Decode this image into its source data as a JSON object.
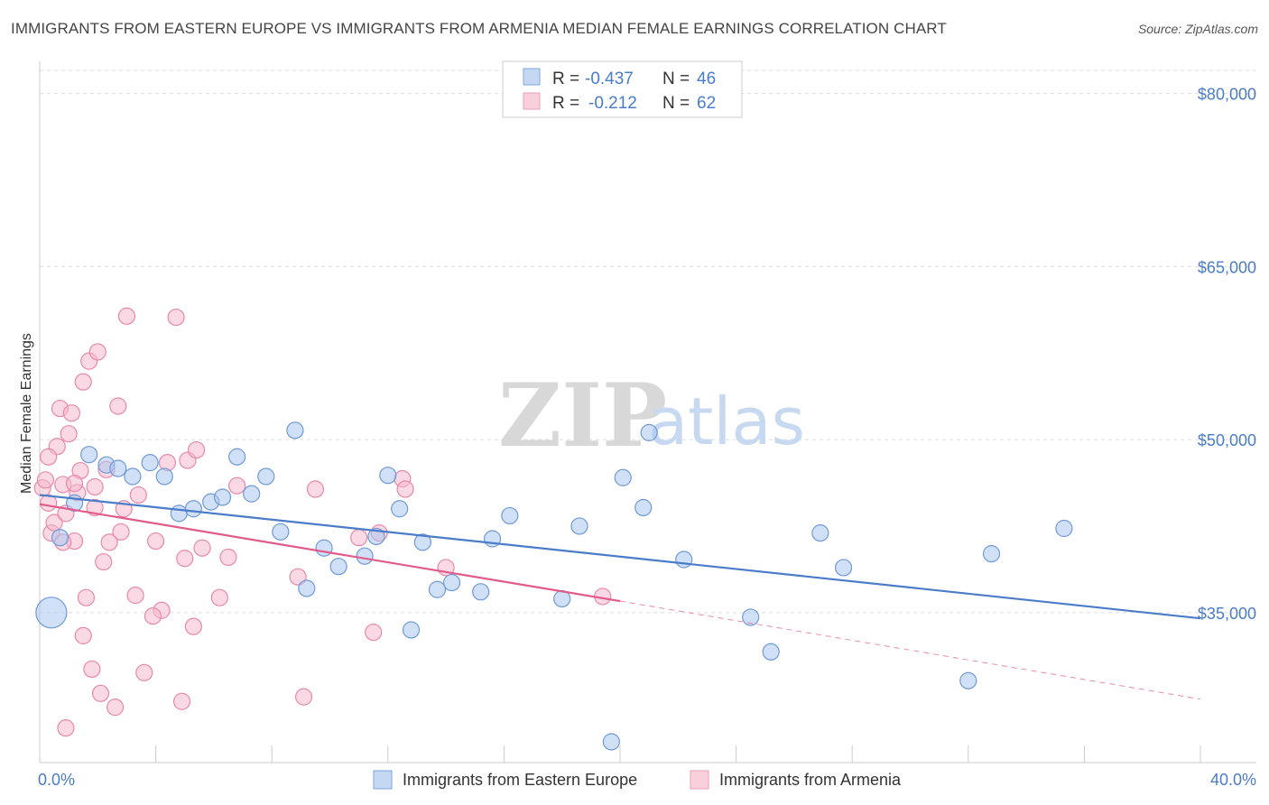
{
  "title": "IMMIGRANTS FROM EASTERN EUROPE VS IMMIGRANTS FROM ARMENIA MEDIAN FEMALE EARNINGS CORRELATION CHART",
  "source": "Source: ZipAtlas.com",
  "watermark": {
    "zip": "ZIP",
    "atlas": "atlas"
  },
  "colors": {
    "blue": "#4a7cc9",
    "blue_fill": "#a9c6ee",
    "pink": "#e05a8a",
    "pink_fill": "#f6b9cd",
    "grid": "#dddddd"
  },
  "chart_data": {
    "type": "scatter",
    "ylabel": "Median Female Earnings",
    "xlim": [
      0,
      40
    ],
    "ylim": [
      22000,
      82000
    ],
    "x_tick_labels": [
      "0.0%",
      "40.0%"
    ],
    "y_ticks": [
      {
        "value": 35000,
        "label": "$35,000"
      },
      {
        "value": 50000,
        "label": "$50,000"
      },
      {
        "value": 65000,
        "label": "$65,000"
      },
      {
        "value": 80000,
        "label": "$80,000"
      }
    ],
    "legend": {
      "rows": [
        {
          "r_label": "R = ",
          "r_value": "-0.437",
          "n_label": "N = ",
          "n_value": "46"
        },
        {
          "r_label": "R = ",
          "r_value": "-0.212",
          "n_label": "N = ",
          "n_value": "62"
        }
      ]
    },
    "series": [
      {
        "name": "Immigrants from Eastern Europe",
        "trend": {
          "x": [
            0,
            40
          ],
          "y": [
            45200,
            34500
          ]
        },
        "points": [
          [
            0.4,
            35000
          ],
          [
            0.7,
            41500
          ],
          [
            1.2,
            44500
          ],
          [
            1.7,
            48700
          ],
          [
            2.3,
            47800
          ],
          [
            2.7,
            47500
          ],
          [
            3.2,
            46800
          ],
          [
            3.8,
            48000
          ],
          [
            4.3,
            46800
          ],
          [
            4.8,
            43600
          ],
          [
            5.3,
            44000
          ],
          [
            5.9,
            44600
          ],
          [
            6.3,
            45000
          ],
          [
            6.8,
            48500
          ],
          [
            7.3,
            45300
          ],
          [
            7.8,
            46800
          ],
          [
            8.3,
            42000
          ],
          [
            8.8,
            50800
          ],
          [
            9.2,
            37100
          ],
          [
            9.8,
            40600
          ],
          [
            10.3,
            39000
          ],
          [
            11.2,
            39900
          ],
          [
            11.6,
            41600
          ],
          [
            12.0,
            46900
          ],
          [
            12.4,
            44000
          ],
          [
            12.8,
            33500
          ],
          [
            13.2,
            41100
          ],
          [
            13.7,
            37000
          ],
          [
            14.2,
            37600
          ],
          [
            15.2,
            36800
          ],
          [
            15.6,
            41400
          ],
          [
            16.2,
            43400
          ],
          [
            18.0,
            36200
          ],
          [
            18.6,
            42500
          ],
          [
            20.1,
            46700
          ],
          [
            20.8,
            44100
          ],
          [
            21.0,
            50600
          ],
          [
            22.2,
            39600
          ],
          [
            24.5,
            34600
          ],
          [
            25.2,
            31600
          ],
          [
            26.9,
            41900
          ],
          [
            27.7,
            38900
          ],
          [
            32.0,
            29100
          ],
          [
            32.8,
            40100
          ],
          [
            35.3,
            42300
          ],
          [
            19.7,
            23800
          ]
        ]
      },
      {
        "name": "Immigrants from Armenia",
        "trend": {
          "x": [
            0,
            20
          ],
          "y": [
            44400,
            36000
          ]
        },
        "trend_ext": {
          "x": [
            20,
            40
          ],
          "y": [
            36000,
            27500
          ]
        },
        "points": [
          [
            0.1,
            45800
          ],
          [
            0.2,
            46500
          ],
          [
            0.3,
            44500
          ],
          [
            0.4,
            41900
          ],
          [
            0.5,
            42800
          ],
          [
            0.6,
            49400
          ],
          [
            0.7,
            52700
          ],
          [
            0.8,
            46100
          ],
          [
            0.9,
            43600
          ],
          [
            1.0,
            50500
          ],
          [
            1.1,
            52300
          ],
          [
            1.2,
            41200
          ],
          [
            1.3,
            45400
          ],
          [
            1.4,
            47300
          ],
          [
            1.5,
            55000
          ],
          [
            1.6,
            36300
          ],
          [
            1.7,
            56800
          ],
          [
            1.8,
            30100
          ],
          [
            1.9,
            45900
          ],
          [
            2.0,
            57600
          ],
          [
            2.1,
            28000
          ],
          [
            2.2,
            39400
          ],
          [
            2.4,
            41100
          ],
          [
            2.6,
            26800
          ],
          [
            2.7,
            52900
          ],
          [
            2.9,
            44000
          ],
          [
            3.0,
            60700
          ],
          [
            3.3,
            36500
          ],
          [
            3.4,
            45200
          ],
          [
            3.6,
            29800
          ],
          [
            4.0,
            41200
          ],
          [
            4.2,
            35200
          ],
          [
            4.4,
            48000
          ],
          [
            4.7,
            60600
          ],
          [
            4.9,
            27300
          ],
          [
            5.1,
            48200
          ],
          [
            5.3,
            33800
          ],
          [
            5.4,
            49100
          ],
          [
            5.6,
            40600
          ],
          [
            6.2,
            36300
          ],
          [
            6.5,
            39800
          ],
          [
            6.8,
            46000
          ],
          [
            8.9,
            38100
          ],
          [
            9.1,
            27700
          ],
          [
            9.5,
            45700
          ],
          [
            11.5,
            33300
          ],
          [
            11.7,
            41900
          ],
          [
            12.5,
            46600
          ],
          [
            12.6,
            45700
          ],
          [
            14.0,
            38900
          ],
          [
            19.4,
            36400
          ],
          [
            0.9,
            25000
          ],
          [
            1.5,
            33000
          ],
          [
            0.3,
            48500
          ],
          [
            1.2,
            46200
          ],
          [
            2.3,
            47400
          ],
          [
            5.0,
            39700
          ],
          [
            11.0,
            41500
          ],
          [
            2.8,
            42000
          ],
          [
            0.8,
            41100
          ],
          [
            1.9,
            44100
          ],
          [
            3.9,
            34700
          ]
        ]
      }
    ]
  }
}
